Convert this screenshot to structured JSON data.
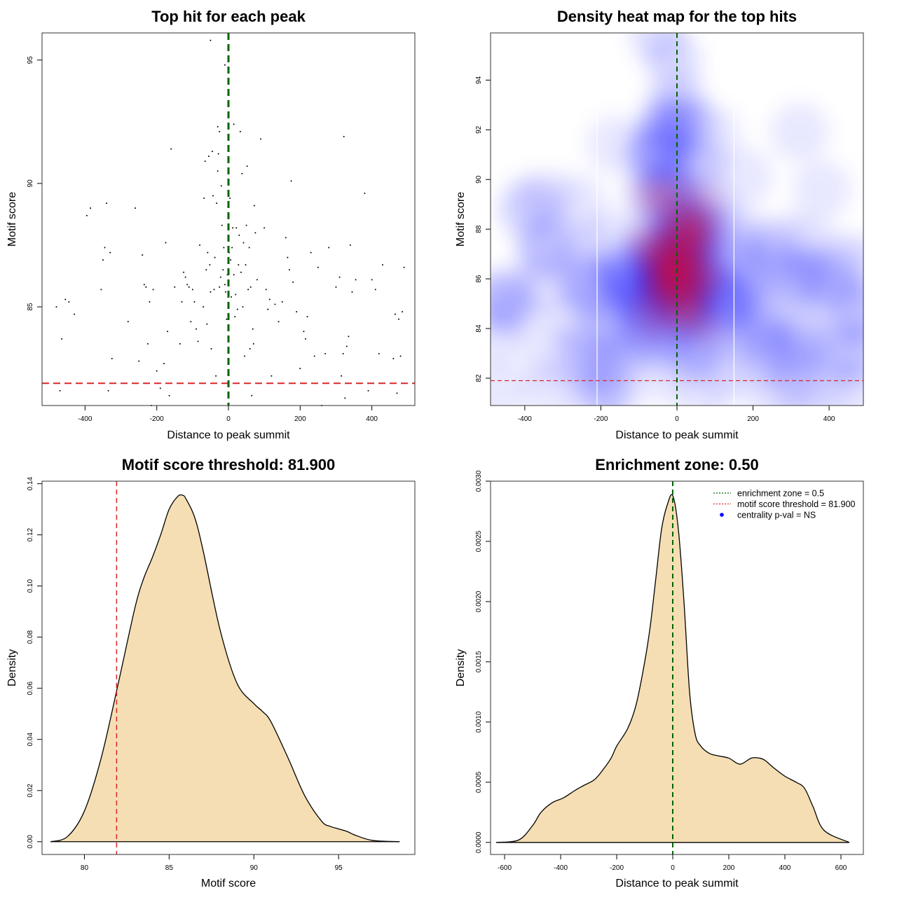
{
  "chart_data": [
    {
      "type": "scatter",
      "title": "Top hit for each peak",
      "xlabel": "Distance to peak summit",
      "ylabel": "Motif score",
      "xlim": [
        -520,
        520
      ],
      "ylim": [
        81.0,
        96.1
      ],
      "xticks": [
        -400,
        -200,
        0,
        200,
        400
      ],
      "yticks": [
        85,
        90,
        95
      ],
      "vline": {
        "x": 0,
        "color": "#006400"
      },
      "hline": {
        "y": 81.9,
        "color": "#d62728"
      },
      "points": [
        [
          -480,
          85.0
        ],
        [
          -470,
          81.6
        ],
        [
          -465,
          83.7
        ],
        [
          -455,
          85.3
        ],
        [
          -445,
          85.2
        ],
        [
          -430,
          84.7
        ],
        [
          -395,
          88.7
        ],
        [
          -385,
          89.0
        ],
        [
          -355,
          85.7
        ],
        [
          -350,
          86.9
        ],
        [
          -345,
          87.4
        ],
        [
          -340,
          89.2
        ],
        [
          -335,
          81.6
        ],
        [
          -330,
          87.2
        ],
        [
          -325,
          82.9
        ],
        [
          -280,
          84.4
        ],
        [
          -260,
          89.0
        ],
        [
          -250,
          82.8
        ],
        [
          -240,
          87.1
        ],
        [
          -235,
          85.9
        ],
        [
          -230,
          85.8
        ],
        [
          -225,
          83.5
        ],
        [
          -220,
          85.2
        ],
        [
          -215,
          81.0
        ],
        [
          -210,
          85.7
        ],
        [
          -200,
          82.4
        ],
        [
          -190,
          81.7
        ],
        [
          -180,
          82.7
        ],
        [
          -175,
          87.6
        ],
        [
          -170,
          84.0
        ],
        [
          -165,
          81.4
        ],
        [
          -160,
          91.4
        ],
        [
          -150,
          85.8
        ],
        [
          -135,
          83.5
        ],
        [
          -130,
          85.2
        ],
        [
          -125,
          86.4
        ],
        [
          -120,
          86.2
        ],
        [
          -115,
          85.9
        ],
        [
          -110,
          85.8
        ],
        [
          -105,
          84.4
        ],
        [
          -100,
          85.7
        ],
        [
          -95,
          85.2
        ],
        [
          -90,
          84.1
        ],
        [
          -85,
          83.6
        ],
        [
          -80,
          87.5
        ],
        [
          -70,
          85.0
        ],
        [
          -68,
          89.4
        ],
        [
          -65,
          90.9
        ],
        [
          -62,
          86.5
        ],
        [
          -60,
          84.3
        ],
        [
          -58,
          87.2
        ],
        [
          -55,
          91.1
        ],
        [
          -52,
          86.7
        ],
        [
          -50,
          85.6
        ],
        [
          -48,
          83.3
        ],
        [
          -45,
          91.3
        ],
        [
          -43,
          89.5
        ],
        [
          -40,
          85.7
        ],
        [
          -38,
          87.0
        ],
        [
          -35,
          82.2
        ],
        [
          -33,
          89.2
        ],
        [
          -30,
          90.5
        ],
        [
          -28,
          91.2
        ],
        [
          -25,
          85.8
        ],
        [
          -22,
          86.2
        ],
        [
          -20,
          89.9
        ],
        [
          -18,
          88.3
        ],
        [
          -15,
          86.5
        ],
        [
          -13,
          87.4
        ],
        [
          -10,
          85.9
        ],
        [
          -8,
          85.6
        ],
        [
          -5,
          84.5
        ],
        [
          -3,
          86.3
        ],
        [
          -1,
          83.6
        ],
        [
          2,
          87.2
        ],
        [
          4,
          89.4
        ],
        [
          6,
          86.9
        ],
        [
          8,
          85.4
        ],
        [
          10,
          87.4
        ],
        [
          12,
          88.2
        ],
        [
          15,
          86.3
        ],
        [
          18,
          84.6
        ],
        [
          20,
          85.5
        ],
        [
          22,
          88.2
        ],
        [
          25,
          84.9
        ],
        [
          28,
          86.7
        ],
        [
          30,
          87.9
        ],
        [
          33,
          92.1
        ],
        [
          35,
          86.4
        ],
        [
          38,
          90.4
        ],
        [
          40,
          85.0
        ],
        [
          42,
          87.6
        ],
        [
          45,
          83.0
        ],
        [
          48,
          86.7
        ],
        [
          50,
          88.3
        ],
        [
          52,
          90.7
        ],
        [
          55,
          85.7
        ],
        [
          58,
          87.4
        ],
        [
          60,
          83.3
        ],
        [
          62,
          85.8
        ],
        [
          65,
          81.4
        ],
        [
          68,
          84.1
        ],
        [
          70,
          83.5
        ],
        [
          72,
          89.1
        ],
        [
          75,
          88.0
        ],
        [
          80,
          86.1
        ],
        [
          90,
          91.8
        ],
        [
          100,
          88.2
        ],
        [
          105,
          85.7
        ],
        [
          110,
          84.9
        ],
        [
          115,
          85.3
        ],
        [
          120,
          82.2
        ],
        [
          130,
          85.1
        ],
        [
          140,
          84.4
        ],
        [
          150,
          85.2
        ],
        [
          160,
          87.8
        ],
        [
          165,
          87.0
        ],
        [
          170,
          86.5
        ],
        [
          175,
          90.1
        ],
        [
          180,
          86.0
        ],
        [
          190,
          84.8
        ],
        [
          200,
          82.5
        ],
        [
          210,
          84.0
        ],
        [
          215,
          83.7
        ],
        [
          220,
          84.6
        ],
        [
          230,
          87.2
        ],
        [
          240,
          83.0
        ],
        [
          250,
          86.6
        ],
        [
          260,
          81.0
        ],
        [
          270,
          83.1
        ],
        [
          280,
          87.4
        ],
        [
          300,
          85.8
        ],
        [
          310,
          86.2
        ],
        [
          315,
          82.2
        ],
        [
          320,
          83.1
        ],
        [
          322,
          91.9
        ],
        [
          325,
          81.3
        ],
        [
          330,
          83.4
        ],
        [
          335,
          83.8
        ],
        [
          340,
          87.5
        ],
        [
          345,
          85.6
        ],
        [
          355,
          86.1
        ],
        [
          380,
          89.6
        ],
        [
          390,
          81.6
        ],
        [
          400,
          86.1
        ],
        [
          410,
          85.7
        ],
        [
          420,
          83.1
        ],
        [
          430,
          86.7
        ],
        [
          460,
          82.9
        ],
        [
          465,
          84.7
        ],
        [
          470,
          81.5
        ],
        [
          475,
          84.5
        ],
        [
          480,
          83.0
        ],
        [
          485,
          84.8
        ],
        [
          490,
          86.6
        ]
      ],
      "extra_points": [
        [
          -50,
          95.8
        ],
        [
          -10,
          94.8
        ],
        [
          0,
          93.3
        ],
        [
          15,
          92.4
        ],
        [
          -25,
          92.1
        ],
        [
          -30,
          92.3
        ]
      ]
    },
    {
      "type": "heatmap",
      "title": "Density heat map for the top hits",
      "xlabel": "Distance to peak summit",
      "ylabel": "Motif score",
      "xlim": [
        -490,
        490
      ],
      "ylim": [
        80.9,
        95.9
      ],
      "xticks": [
        -400,
        -200,
        0,
        200,
        400
      ],
      "yticks": [
        82,
        84,
        86,
        88,
        90,
        92,
        94
      ],
      "vline": {
        "x": 0,
        "color": "#006400"
      },
      "hline": {
        "y": 81.9,
        "color": "#d62728"
      },
      "white_vlines": [
        -210,
        150
      ],
      "palette": [
        "#ffffff",
        "#0000ff",
        "#ff0000"
      ]
    },
    {
      "type": "area",
      "title": "Motif score threshold: 81.900",
      "xlabel": "Motif score",
      "ylabel": "Density",
      "xlim": [
        77.5,
        99.5
      ],
      "ylim": [
        -0.005,
        0.141
      ],
      "xticks": [
        80,
        85,
        90,
        95
      ],
      "yticks": [
        0.0,
        0.02,
        0.04,
        0.06,
        0.08,
        0.1,
        0.12,
        0.14
      ],
      "vline": {
        "x": 81.9,
        "color": "#d62728"
      },
      "fill": "#f5deb3",
      "x": [
        78.0,
        79.0,
        80.0,
        81.0,
        82.0,
        83.0,
        83.5,
        84.0,
        84.5,
        85.0,
        85.5,
        85.8,
        86.0,
        86.5,
        87.0,
        88.0,
        89.0,
        90.0,
        90.5,
        91.0,
        92.0,
        93.0,
        94.0,
        94.5,
        95.0,
        95.5,
        96.0,
        97.0,
        98.6
      ],
      "values": [
        0.0,
        0.002,
        0.012,
        0.033,
        0.062,
        0.092,
        0.103,
        0.111,
        0.12,
        0.13,
        0.135,
        0.1355,
        0.134,
        0.127,
        0.114,
        0.083,
        0.062,
        0.054,
        0.051,
        0.047,
        0.033,
        0.018,
        0.008,
        0.006,
        0.005,
        0.004,
        0.0025,
        0.0005,
        0.0
      ]
    },
    {
      "type": "area",
      "title": "Enrichment zone: 0.50",
      "xlabel": "Distance to peak summit",
      "ylabel": "Density",
      "xlim": [
        -650,
        680
      ],
      "ylim": [
        -0.0001,
        0.003
      ],
      "xticks": [
        -600,
        -400,
        -200,
        0,
        200,
        400,
        600
      ],
      "yticks": [
        "0.0000",
        "0.0005",
        "0.0010",
        "0.0015",
        "0.0020",
        "0.0025",
        "0.0030"
      ],
      "vline": {
        "x": 0,
        "color": "#006400"
      },
      "fill": "#f5deb3",
      "x": [
        -630,
        -550,
        -500,
        -470,
        -430,
        -390,
        -350,
        -320,
        -280,
        -250,
        -220,
        -200,
        -160,
        -130,
        -100,
        -80,
        -60,
        -40,
        -20,
        0,
        20,
        40,
        60,
        80,
        100,
        130,
        160,
        200,
        240,
        280,
        310,
        330,
        360,
        400,
        440,
        470,
        500,
        540,
        630
      ],
      "values": [
        0.0,
        2e-05,
        0.00014,
        0.00025,
        0.00033,
        0.00037,
        0.00043,
        0.00047,
        0.00052,
        0.0006,
        0.0007,
        0.0008,
        0.00095,
        0.00115,
        0.0015,
        0.0018,
        0.0022,
        0.0026,
        0.0028,
        0.00288,
        0.0026,
        0.002,
        0.00125,
        0.0009,
        0.0008,
        0.00074,
        0.00072,
        0.0007,
        0.00065,
        0.0007,
        0.0007,
        0.00068,
        0.00062,
        0.00055,
        0.0005,
        0.00045,
        0.0003,
        0.0001,
        0.0
      ],
      "legend": {
        "placement": "top-right",
        "entries": [
          {
            "label": "enrichment zone = 0.5",
            "color": "#006400",
            "kind": "dotted-line"
          },
          {
            "label": "motif score threshold = 81.900",
            "color": "#d62728",
            "kind": "dotted-line"
          },
          {
            "label": "centrality p-val = NS",
            "color": "#0000ff",
            "kind": "point"
          }
        ]
      }
    }
  ]
}
